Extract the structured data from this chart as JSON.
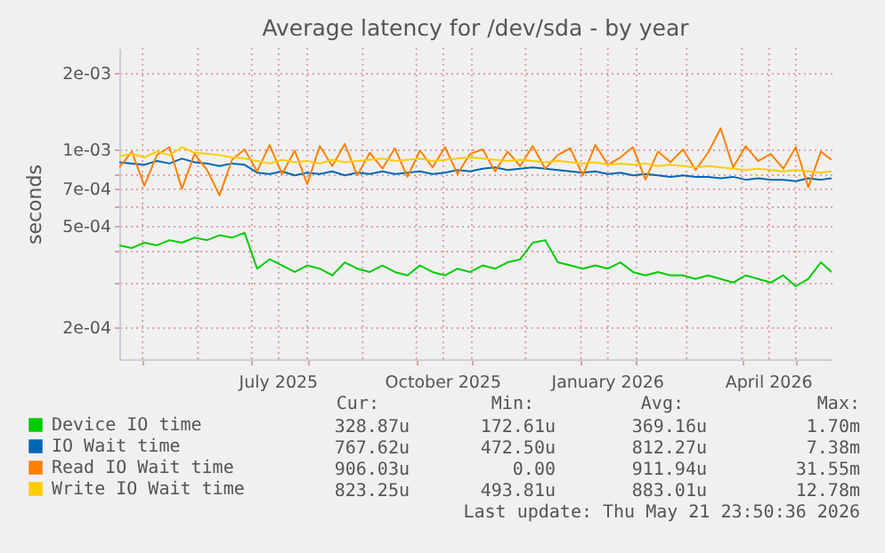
{
  "chart_data": {
    "type": "line",
    "title": "Average latency for /dev/sda - by year",
    "ylabel": "seconds",
    "log": "y",
    "grid": true,
    "legend": "bottom",
    "line_style": "solid",
    "x": [
      "2025-04-18",
      "2025-04-25",
      "2025-05-02",
      "2025-05-09",
      "2025-05-16",
      "2025-05-23",
      "2025-05-30",
      "2025-06-06",
      "2025-06-13",
      "2025-06-20",
      "2025-06-27",
      "2025-07-04",
      "2025-07-11",
      "2025-07-18",
      "2025-07-25",
      "2025-08-01",
      "2025-08-08",
      "2025-08-15",
      "2025-08-22",
      "2025-08-29",
      "2025-09-05",
      "2025-09-12",
      "2025-09-19",
      "2025-09-26",
      "2025-10-03",
      "2025-10-10",
      "2025-10-17",
      "2025-10-24",
      "2025-10-31",
      "2025-11-07",
      "2025-11-14",
      "2025-11-21",
      "2025-11-28",
      "2025-12-05",
      "2025-12-12",
      "2025-12-19",
      "2025-12-26",
      "2026-01-02",
      "2026-01-09",
      "2026-01-16",
      "2026-01-23",
      "2026-01-30",
      "2026-02-06",
      "2026-02-13",
      "2026-02-20",
      "2026-02-27",
      "2026-03-06",
      "2026-03-13",
      "2026-03-20",
      "2026-03-27",
      "2026-04-03",
      "2026-04-10",
      "2026-04-17",
      "2026-04-24",
      "2026-05-01",
      "2026-05-08",
      "2026-05-15",
      "2026-05-21"
    ],
    "xlim": [
      "2025-04-18",
      "2026-05-21"
    ],
    "xticks": [
      {
        "value": "2025-05-01",
        "label": null
      },
      {
        "value": "2025-06-01",
        "label": null
      },
      {
        "value": "2025-07-01",
        "label": null
      },
      {
        "value": "2025-07-16",
        "label": "July 2025"
      },
      {
        "value": "2025-08-01",
        "label": null
      },
      {
        "value": "2025-09-01",
        "label": null
      },
      {
        "value": "2025-10-01",
        "label": null
      },
      {
        "value": "2025-10-16",
        "label": "October 2025"
      },
      {
        "value": "2025-11-01",
        "label": null
      },
      {
        "value": "2025-12-01",
        "label": null
      },
      {
        "value": "2026-01-01",
        "label": null
      },
      {
        "value": "2026-01-16",
        "label": "January 2026"
      },
      {
        "value": "2026-02-01",
        "label": null
      },
      {
        "value": "2026-03-01",
        "label": null
      },
      {
        "value": "2026-04-01",
        "label": null
      },
      {
        "value": "2026-04-16",
        "label": "April 2026"
      },
      {
        "value": "2026-05-01",
        "label": null
      }
    ],
    "ylim": [
      0.00015,
      0.0025
    ],
    "yticks": [
      {
        "value": 0.0002,
        "label": "2e-04"
      },
      {
        "value": 0.0003,
        "label": null
      },
      {
        "value": 0.0004,
        "label": null
      },
      {
        "value": 0.0005,
        "label": "5e-04"
      },
      {
        "value": 0.0006,
        "label": null
      },
      {
        "value": 0.0007,
        "label": "7e-04"
      },
      {
        "value": 0.0008,
        "label": null
      },
      {
        "value": 0.001,
        "label": "1e-03"
      },
      {
        "value": 0.002,
        "label": "2e-03"
      }
    ],
    "series": [
      {
        "name": "Device IO time",
        "color": "#00cc00",
        "values": [
          0.00042,
          0.00041,
          0.00043,
          0.00042,
          0.00044,
          0.00043,
          0.00045,
          0.00044,
          0.00046,
          0.00045,
          0.00047,
          0.00034,
          0.00037,
          0.00035,
          0.00033,
          0.00035,
          0.00034,
          0.00032,
          0.00036,
          0.00034,
          0.00033,
          0.00035,
          0.00033,
          0.00032,
          0.00035,
          0.00033,
          0.00032,
          0.00034,
          0.00033,
          0.00035,
          0.00034,
          0.00036,
          0.00037,
          0.00043,
          0.00044,
          0.00036,
          0.00035,
          0.00034,
          0.00035,
          0.00034,
          0.00036,
          0.00033,
          0.00032,
          0.00033,
          0.00032,
          0.00032,
          0.00031,
          0.00032,
          0.00031,
          0.0003,
          0.00032,
          0.00031,
          0.0003,
          0.00032,
          0.00029,
          0.00031,
          0.00036,
          0.00033
        ]
      },
      {
        "name": "IO Wait time",
        "color": "#0066b3",
        "values": [
          0.00089,
          0.00088,
          0.00087,
          0.0009,
          0.00088,
          0.00092,
          0.00089,
          0.00088,
          0.00086,
          0.00088,
          0.00087,
          0.00081,
          0.0008,
          0.00082,
          0.00079,
          0.00081,
          0.0008,
          0.00082,
          0.00079,
          0.00081,
          0.0008,
          0.00082,
          0.0008,
          0.00081,
          0.00082,
          0.0008,
          0.00081,
          0.00083,
          0.00082,
          0.00084,
          0.00085,
          0.00083,
          0.00084,
          0.00085,
          0.00084,
          0.00083,
          0.00082,
          0.00081,
          0.00082,
          0.0008,
          0.00081,
          0.00079,
          0.0008,
          0.00079,
          0.00078,
          0.00079,
          0.00078,
          0.00078,
          0.00077,
          0.00078,
          0.00076,
          0.00077,
          0.00076,
          0.00076,
          0.00075,
          0.00077,
          0.00076,
          0.00077
        ]
      },
      {
        "name": "Read IO Wait time",
        "color": "#ff8000",
        "values": [
          0.00085,
          0.00098,
          0.00072,
          0.00095,
          0.00102,
          0.0007,
          0.00096,
          0.00083,
          0.00066,
          0.00091,
          0.001,
          0.00082,
          0.00104,
          0.0008,
          0.00099,
          0.00073,
          0.00103,
          0.00086,
          0.00105,
          0.00079,
          0.00097,
          0.00084,
          0.00101,
          0.00078,
          0.00099,
          0.00085,
          0.00102,
          0.0008,
          0.00096,
          0.001,
          0.00082,
          0.00098,
          0.00086,
          0.00103,
          0.00084,
          0.00095,
          0.00101,
          0.00079,
          0.00104,
          0.00087,
          0.00093,
          0.00102,
          0.00076,
          0.00098,
          0.00089,
          0.001,
          0.00083,
          0.00097,
          0.00121,
          0.00085,
          0.00103,
          0.0009,
          0.00096,
          0.00084,
          0.00102,
          0.00071,
          0.00098,
          0.00091
        ]
      },
      {
        "name": "Write IO Wait time",
        "color": "#ffcc00",
        "values": [
          0.00094,
          0.00096,
          0.00093,
          0.00098,
          0.00095,
          0.00102,
          0.00097,
          0.00096,
          0.00095,
          0.00093,
          0.00092,
          0.0009,
          0.00088,
          0.00091,
          0.00089,
          0.0009,
          0.00088,
          0.00091,
          0.00089,
          0.0009,
          0.00091,
          0.00092,
          0.0009,
          0.00091,
          0.00092,
          0.0009,
          0.00091,
          0.00092,
          0.00093,
          0.00092,
          0.00091,
          0.0009,
          0.00091,
          0.0009,
          0.00089,
          0.0009,
          0.00089,
          0.00088,
          0.00089,
          0.00087,
          0.00088,
          0.00087,
          0.00088,
          0.00086,
          0.00087,
          0.00086,
          0.00085,
          0.00086,
          0.00085,
          0.00084,
          0.00083,
          0.00084,
          0.00083,
          0.00082,
          0.00083,
          0.00082,
          0.00081,
          0.00082
        ]
      }
    ],
    "annotations": [
      "Cur:",
      "Min:",
      "Avg:",
      "Max:",
      "328.87u",
      "172.61u",
      "369.16u",
      "1.70m",
      "767.62u",
      "472.50u",
      "812.27u",
      "7.38m",
      "906.03u",
      "0.00",
      "911.94u",
      "31.55m",
      "823.25u",
      "493.81u",
      "883.01u",
      "12.78m",
      "Last update: Thu May 21 23:50:36 2026"
    ]
  }
}
